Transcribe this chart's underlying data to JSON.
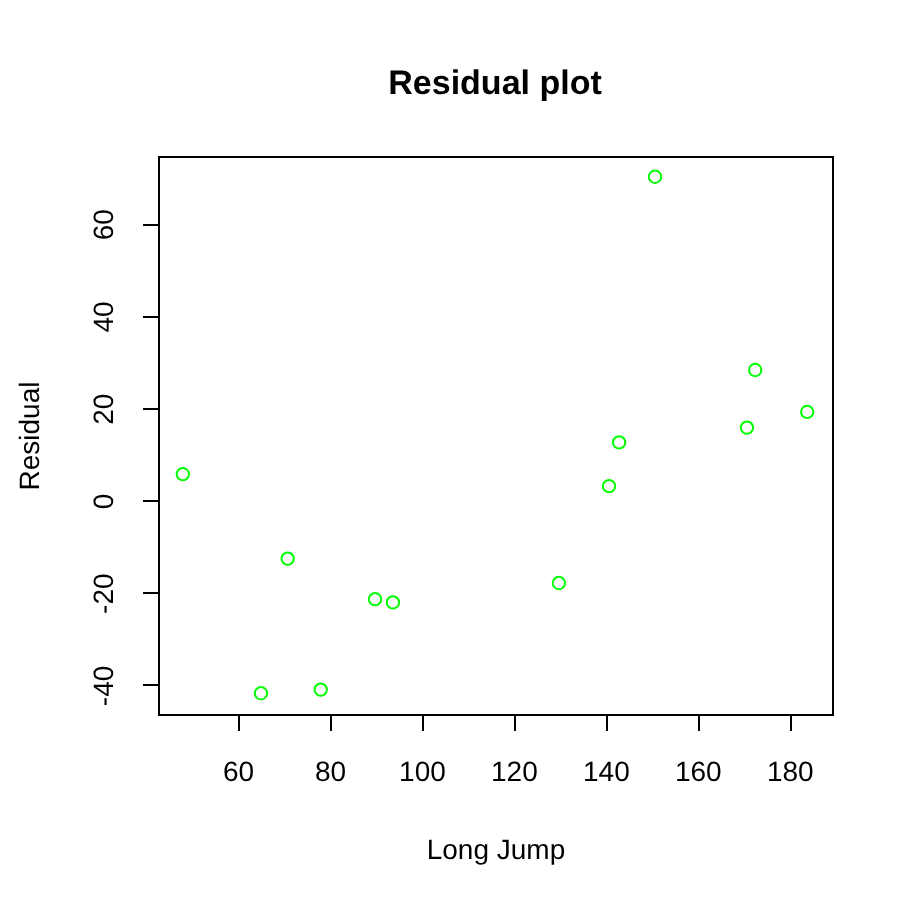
{
  "chart_data": {
    "type": "scatter",
    "title": "Residual plot",
    "xlabel": "Long Jump",
    "ylabel": "Residual",
    "x": [
      48.1,
      65.1,
      70.9,
      78.1,
      89.9,
      93.8,
      129.9,
      140.8,
      143.0,
      150.8,
      170.8,
      172.6,
      183.9
    ],
    "series": [
      {
        "color": "#00ff00",
        "values": [
          5.7,
          -41.8,
          -12.6,
          -41.0,
          -21.4,
          -22.1,
          -17.9,
          3.1,
          12.6,
          70.2,
          15.8,
          28.3,
          19.2
        ]
      }
    ],
    "xlim": [
      42.7,
      189.3
    ],
    "ylim": [
      -46.3,
      74.7
    ],
    "xticks": [
      60,
      80,
      100,
      120,
      140,
      160,
      180
    ],
    "yticks": [
      -40,
      -20,
      0,
      20,
      40,
      60
    ],
    "marker": "circle",
    "grid": false,
    "legend": false
  }
}
